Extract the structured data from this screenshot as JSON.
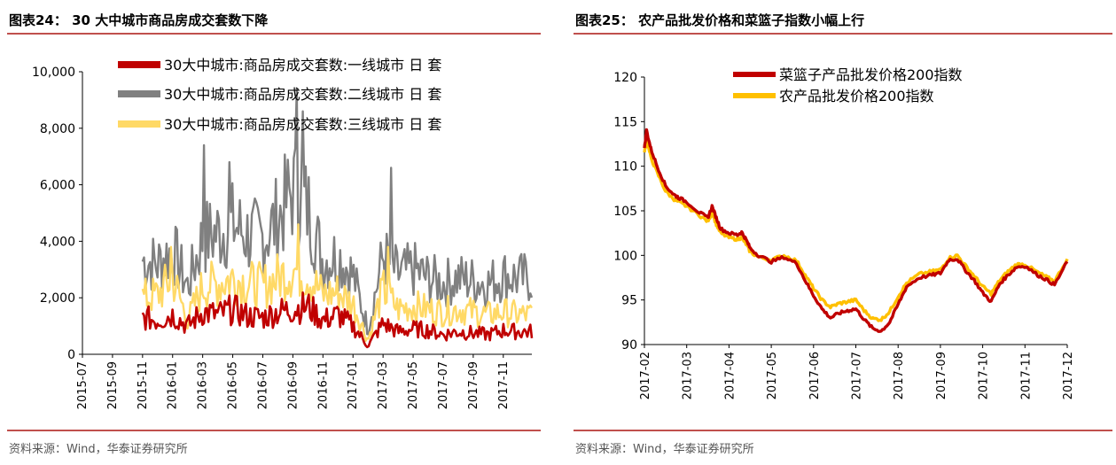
{
  "left": {
    "title": "图表24：   30 大中城市商品房成交套数下降",
    "source": "资料来源：Wind，华泰证券研究所",
    "chart_data": {
      "type": "line",
      "title": "30 大中城市商品房成交套数下降",
      "ylim": [
        0,
        10000
      ],
      "yticks": [
        0,
        2000,
        4000,
        6000,
        8000,
        10000
      ],
      "ytick_labels": [
        "0",
        "2,000",
        "4,000",
        "6,000",
        "8,000",
        "10,000"
      ],
      "xlim": [
        "2015-07",
        "2017-12"
      ],
      "xtick_labels": [
        "2015-07",
        "2015-09",
        "2015-11",
        "2016-01",
        "2016-03",
        "2016-05",
        "2016-07",
        "2016-09",
        "2016-11",
        "2017-01",
        "2017-03",
        "2017-05",
        "2017-07",
        "2017-09",
        "2017-11"
      ],
      "x": [
        "2015-11",
        "2015-12",
        "2016-01",
        "2016-02",
        "2016-03",
        "2016-04",
        "2016-05",
        "2016-06",
        "2016-07",
        "2016-08",
        "2016-09",
        "2016-10",
        "2016-11",
        "2016-12",
        "2017-01",
        "2017-02",
        "2017-03",
        "2017-04",
        "2017-05",
        "2017-06",
        "2017-07",
        "2017-08",
        "2017-09",
        "2017-10",
        "2017-11",
        "2017-12"
      ],
      "legend_position": "top",
      "series": [
        {
          "name": "30大中城市:商品房成交套数:一线城市 日 套",
          "color": "#c00000",
          "values": [
            1300,
            1200,
            1400,
            1000,
            1500,
            1400,
            1600,
            1350,
            1300,
            1500,
            1600,
            1700,
            1200,
            1400,
            1000,
            300,
            1100,
            800,
            900,
            850,
            700,
            800,
            750,
            700,
            850,
            800
          ]
        },
        {
          "name": "30大中城市:商品房成交套数:二线城市 日 套",
          "color": "#808080",
          "values": [
            3300,
            3200,
            3700,
            2400,
            4100,
            4300,
            4600,
            4200,
            4100,
            4800,
            5800,
            5200,
            3300,
            3500,
            2800,
            900,
            3500,
            2800,
            3000,
            2700,
            2500,
            2700,
            2600,
            2500,
            2800,
            2700
          ]
        },
        {
          "name": "30大中城市:商品房成交套数:三线城市 日 套",
          "color": "#ffd966",
          "values": [
            2000,
            2100,
            2700,
            1200,
            2400,
            2500,
            2700,
            2500,
            2400,
            2700,
            3000,
            2800,
            2100,
            2200,
            1800,
            500,
            2300,
            1600,
            1700,
            1600,
            1500,
            1600,
            1500,
            1400,
            1500,
            1400
          ]
        }
      ]
    }
  },
  "right": {
    "title": "图表25：   农产品批发价格和菜篮子指数小幅上行",
    "source": "资料来源：Wind，华泰证券研究所",
    "chart_data": {
      "type": "line",
      "title": "农产品批发价格和菜篮子指数小幅上行",
      "ylim": [
        90,
        120
      ],
      "yticks": [
        90,
        95,
        100,
        105,
        110,
        115,
        120
      ],
      "ytick_labels": [
        "90",
        "95",
        "100",
        "105",
        "110",
        "115",
        "120"
      ],
      "xlim": [
        "2017-02",
        "2017-12"
      ],
      "xtick_labels": [
        "2017-02",
        "2017-03",
        "2017-04",
        "2017-05",
        "2017-06",
        "2017-07",
        "2017-08",
        "2017-09",
        "2017-10",
        "2017-11",
        "2017-12"
      ],
      "x": [
        0,
        0.05,
        0.15,
        0.3,
        0.5,
        0.7,
        0.8,
        1.0,
        1.3,
        1.5,
        1.6,
        1.7,
        1.8,
        2.0,
        2.2,
        2.3,
        2.4,
        2.5,
        2.7,
        3.0,
        3.3,
        3.6,
        3.8,
        4.0,
        4.2,
        4.4,
        4.6,
        4.8,
        5.0,
        5.2,
        5.4,
        5.6,
        5.8,
        6.0,
        6.2,
        6.5,
        6.8,
        7.0,
        7.2,
        7.4,
        7.6,
        7.8,
        8.0,
        8.2,
        8.4,
        8.6,
        8.8,
        9.0,
        9.3,
        9.5,
        9.7,
        10.0
      ],
      "series": [
        {
          "name": "菜篮子产品批发价格200指数",
          "color": "#c00000",
          "values": [
            112.0,
            114.0,
            112.0,
            110.0,
            107.8,
            106.8,
            106.5,
            106.0,
            104.8,
            104.2,
            105.5,
            104.2,
            103.0,
            102.5,
            102.3,
            102.6,
            101.8,
            100.8,
            100.0,
            99.3,
            99.8,
            99.1,
            97.2,
            95.5,
            94.0,
            93.0,
            93.5,
            93.8,
            94.0,
            92.8,
            91.8,
            91.5,
            92.5,
            94.5,
            96.5,
            97.5,
            97.8,
            98.0,
            99.5,
            99.6,
            98.3,
            97.2,
            95.8,
            94.8,
            96.8,
            97.8,
            98.7,
            98.8,
            97.8,
            97.3,
            96.7,
            99.3
          ]
        },
        {
          "name": "农产品批发价格200指数",
          "color": "#ffc000",
          "values": [
            111.5,
            113.0,
            111.0,
            109.3,
            107.2,
            106.3,
            106.0,
            105.5,
            104.5,
            103.8,
            104.8,
            103.5,
            102.5,
            102.0,
            101.8,
            102.0,
            101.3,
            100.4,
            99.8,
            99.5,
            100.0,
            99.4,
            97.8,
            96.3,
            95.0,
            94.2,
            94.6,
            94.8,
            95.0,
            93.8,
            92.9,
            92.8,
            93.7,
            95.4,
            96.9,
            97.9,
            98.2,
            98.4,
            99.7,
            100.0,
            98.8,
            97.7,
            96.5,
            95.7,
            97.2,
            98.2,
            99.0,
            99.0,
            98.1,
            97.6,
            97.1,
            99.6
          ]
        }
      ]
    }
  }
}
